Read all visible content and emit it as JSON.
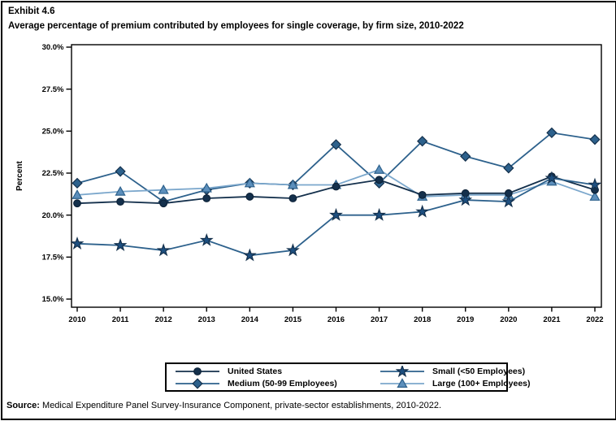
{
  "exhibit": {
    "number": "Exhibit 4.6",
    "title": "Average percentage of premium contributed by employees for single coverage, by firm size, 2010-2022"
  },
  "source": {
    "label": "Source:",
    "text": " Medical Expenditure Panel Survey-Insurance Component, private-sector establishments, 2010-2022."
  },
  "colors": {
    "frame": "#000000",
    "background": "#ffffff",
    "dark_navy": "#14304c",
    "steel_blue": "#2d618c",
    "light_blue": "#7ba7cc"
  },
  "chart_data": {
    "type": "line",
    "title": "Average percentage of premium contributed by employees for single coverage, by firm size, 2010-2022",
    "xlabel": "",
    "ylabel": "Percent",
    "ylim": [
      15.0,
      30.0
    ],
    "ytick_step": 2.5,
    "grid": false,
    "legend_position": "bottom",
    "categories": [
      "2010",
      "2011",
      "2012",
      "2013",
      "2014",
      "2015",
      "2016",
      "2017",
      "2018",
      "2019",
      "2020",
      "2021",
      "2022"
    ],
    "yticks": [
      {
        "value": 30.0,
        "label": "30.0%"
      },
      {
        "value": 27.5,
        "label": "27.5%"
      },
      {
        "value": 25.0,
        "label": "25.0%"
      },
      {
        "value": 22.5,
        "label": "22.5%"
      },
      {
        "value": 20.0,
        "label": "20.0%"
      },
      {
        "value": 17.5,
        "label": "17.5%"
      },
      {
        "value": 15.0,
        "label": "15.0%"
      }
    ],
    "series": [
      {
        "name": "United States",
        "marker": "circle",
        "line_color": "#14304c",
        "marker_fill": "#14304c",
        "marker_stroke": "#0d2238",
        "values": [
          20.7,
          20.8,
          20.7,
          21.0,
          21.1,
          21.0,
          21.7,
          22.1,
          21.2,
          21.3,
          21.3,
          22.3,
          21.5
        ]
      },
      {
        "name": "Medium (50-99 Employees)",
        "marker": "diamond",
        "line_color": "#2d618c",
        "marker_fill": "#2d618c",
        "marker_stroke": "#14304c",
        "values": [
          21.9,
          22.6,
          20.8,
          21.5,
          21.9,
          21.8,
          24.2,
          21.9,
          24.4,
          23.5,
          22.8,
          24.9,
          24.5
        ]
      },
      {
        "name": "Small (<50 Employees)",
        "marker": "star",
        "line_color": "#2d618c",
        "marker_fill": "#1d4f80",
        "marker_stroke": "#14304c",
        "values": [
          18.3,
          18.2,
          17.9,
          18.5,
          17.6,
          17.9,
          20.0,
          20.0,
          20.2,
          20.9,
          20.8,
          22.2,
          21.8
        ]
      },
      {
        "name": "Large (100+ Employees)",
        "marker": "triangle",
        "line_color": "#7ba7cc",
        "marker_fill": "#5c8fbc",
        "marker_stroke": "#2d618c",
        "values": [
          21.2,
          21.4,
          21.5,
          21.6,
          21.9,
          21.8,
          21.8,
          22.7,
          21.1,
          21.2,
          21.2,
          22.0,
          21.1
        ]
      }
    ]
  }
}
